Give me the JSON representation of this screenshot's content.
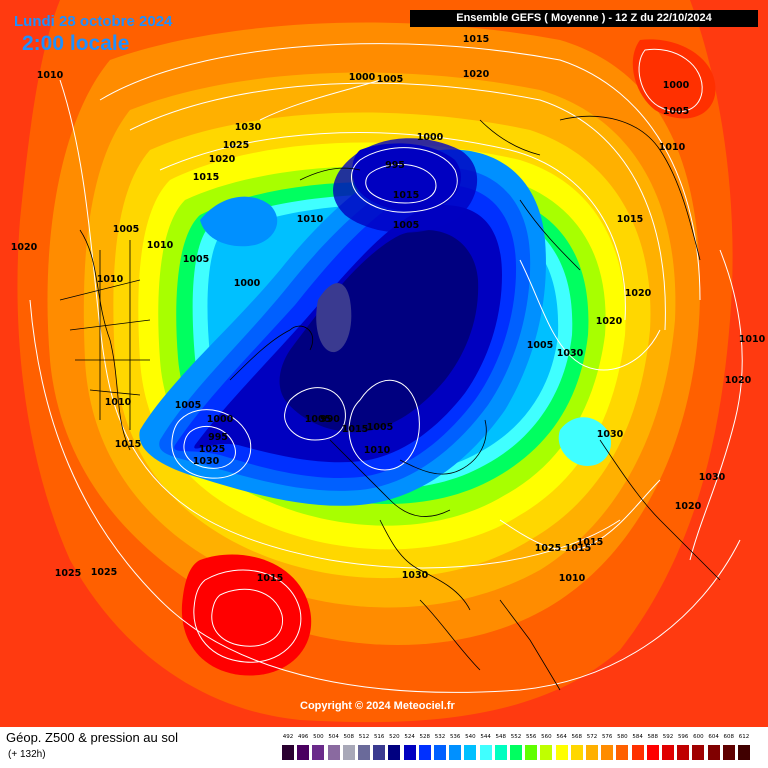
{
  "header": {
    "date": "Lundi 28 octobre 2024",
    "time": "2:00 locale",
    "run": "Ensemble GEFS  ( Moyenne )  -  12 Z du 22/10/2024"
  },
  "copyright": "Copyright © 2024 Meteociel.fr",
  "footer": {
    "parameter": "Géop. Z500 & pression au sol",
    "lead": "(+ 132h)"
  },
  "scale": {
    "ticks": [
      "492",
      "496",
      "500",
      "504",
      "508",
      "512",
      "516",
      "520",
      "524",
      "528",
      "532",
      "536",
      "540",
      "544",
      "548",
      "552",
      "556",
      "560",
      "564",
      "568",
      "572",
      "576",
      "580",
      "584",
      "588",
      "592",
      "596",
      "600",
      "604",
      "608",
      "612"
    ],
    "colors": [
      "#2a0030",
      "#4a0060",
      "#6a2a8a",
      "#8a6aa0",
      "#a8a8b8",
      "#6a6a9a",
      "#3a3a90",
      "#000080",
      "#0000c0",
      "#0030ff",
      "#0060ff",
      "#0090ff",
      "#00c0ff",
      "#40ffff",
      "#00ffc0",
      "#00ff60",
      "#60ff00",
      "#c0ff00",
      "#ffff00",
      "#ffd700",
      "#ffb000",
      "#ff8c00",
      "#ff6000",
      "#ff3000",
      "#ff0000",
      "#e00000",
      "#c00000",
      "#a00000",
      "#800000",
      "#600000",
      "#400000"
    ]
  },
  "pressure_labels": [
    {
      "text": "1015"
    },
    {
      "text": "1020"
    },
    {
      "text": "1010"
    },
    {
      "text": "1000"
    },
    {
      "text": "1005"
    },
    {
      "text": "1000"
    },
    {
      "text": "1005"
    },
    {
      "text": "1030"
    },
    {
      "text": "1025"
    },
    {
      "text": "1020"
    },
    {
      "text": "1015"
    },
    {
      "text": "1010"
    },
    {
      "text": "1000"
    },
    {
      "text": "995"
    },
    {
      "text": "1015"
    },
    {
      "text": "1005"
    },
    {
      "text": "1010"
    },
    {
      "text": "1005"
    },
    {
      "text": "1005"
    },
    {
      "text": "1000"
    },
    {
      "text": "1010"
    },
    {
      "text": "1020"
    },
    {
      "text": "1015"
    },
    {
      "text": "1020"
    },
    {
      "text": "1020"
    },
    {
      "text": "1010"
    },
    {
      "text": "1005"
    },
    {
      "text": "1030"
    },
    {
      "text": "1010"
    },
    {
      "text": "1020"
    },
    {
      "text": "1010"
    },
    {
      "text": "1005"
    },
    {
      "text": "1000"
    },
    {
      "text": "995"
    },
    {
      "text": "1025"
    },
    {
      "text": "1030"
    },
    {
      "text": "1015"
    },
    {
      "text": "1005"
    },
    {
      "text": "990"
    },
    {
      "text": "1015"
    },
    {
      "text": "1005"
    },
    {
      "text": "1010"
    },
    {
      "text": "1030"
    },
    {
      "text": "1030"
    },
    {
      "text": "1020"
    },
    {
      "text": "1025"
    },
    {
      "text": "1015"
    },
    {
      "text": "1015"
    },
    {
      "text": "1030"
    },
    {
      "text": "1025"
    },
    {
      "text": "1025"
    },
    {
      "text": "1015"
    },
    {
      "text": "1010"
    }
  ]
}
